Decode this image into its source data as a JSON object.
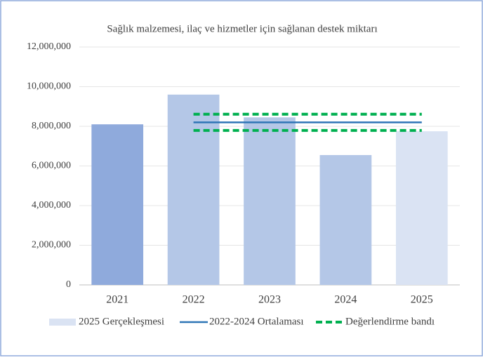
{
  "chart_data": {
    "type": "bar",
    "title": "Sağlık malzemesi, ilaç ve hizmetler için sağlanan destek miktarı",
    "categories": [
      "2021",
      "2022",
      "2023",
      "2024",
      "2025"
    ],
    "series": [
      {
        "name": "2025 Gerçekleşmesi",
        "type": "bar",
        "color": "#dae3f3",
        "colors": [
          "#8faadc",
          "#b4c7e7",
          "#b4c7e7",
          "#b4c7e7",
          "#dae3f3"
        ],
        "values": [
          8100000,
          9600000,
          8450000,
          6550000,
          7750000
        ]
      },
      {
        "name": "2022-2024 Ortalaması",
        "type": "line",
        "color": "#2e75b6",
        "values": [
          null,
          8200000,
          8200000,
          8200000,
          8200000
        ]
      },
      {
        "name": "Değerlendirme bandı",
        "type": "dashed",
        "color": "#00b050",
        "upper": [
          null,
          8610000,
          8610000,
          8610000,
          8610000
        ],
        "lower": [
          null,
          7790000,
          7790000,
          7790000,
          7790000
        ]
      }
    ],
    "ylim": [
      0,
      12000000
    ],
    "yticks": [
      0,
      {
        "value": 2000000,
        "label": "2,000,000"
      },
      {
        "value": 4000000,
        "label": "4,000,000"
      },
      {
        "value": 6000000,
        "label": "6,000,000"
      },
      {
        "value": 8000000,
        "label": "8,000,000"
      },
      {
        "value": 10000000,
        "label": "10,000,000"
      },
      {
        "value": 12000000,
        "label": "12,000,000"
      }
    ],
    "grid": true
  }
}
